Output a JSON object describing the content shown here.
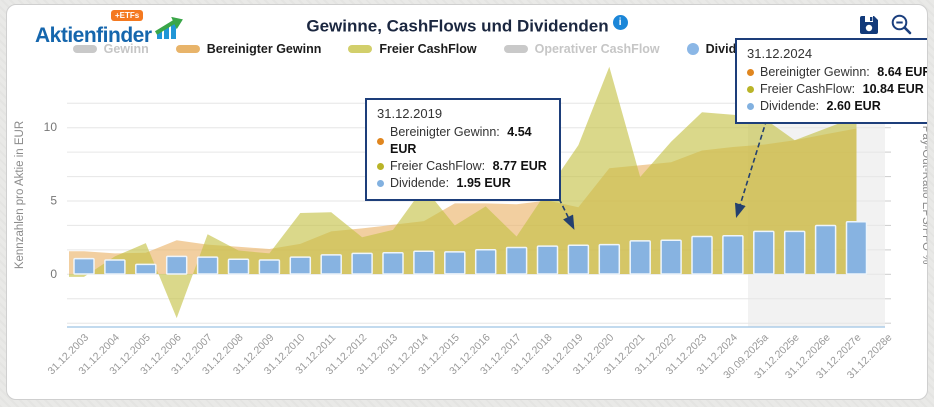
{
  "header": {
    "logo_text": "Aktienfinder",
    "logo_badge": "+ETFs",
    "title": "Gewinne, CashFlows und Dividenden"
  },
  "toolbar": {
    "icons": [
      "save-icon",
      "zoom-out-icon"
    ]
  },
  "legend": [
    {
      "label": "Gewinn",
      "color": "#c9c9c9",
      "active": false,
      "shape": "pill"
    },
    {
      "label": "Bereinigter Gewinn",
      "color": "#e8b46a",
      "active": true,
      "shape": "pill"
    },
    {
      "label": "Freier CashFlow",
      "color": "#d2cf6b",
      "active": true,
      "shape": "pill"
    },
    {
      "label": "Operativer CashFlow",
      "color": "#c9c9c9",
      "active": false,
      "shape": "pill"
    },
    {
      "label": "Dividende",
      "color": "#8bb7e6",
      "active": true,
      "shape": "circle"
    }
  ],
  "tooltips": [
    {
      "id": "tip2019",
      "date": "31.12.2019",
      "rows": [
        {
          "label": "Bereinigter Gewinn",
          "value": "4.54 EUR",
          "color": "#e0861f"
        },
        {
          "label": "Freier CashFlow",
          "value": "8.77 EUR",
          "color": "#b9b428"
        },
        {
          "label": "Dividende",
          "value": "1.95 EUR",
          "color": "#82b1e0"
        }
      ]
    },
    {
      "id": "tip2024",
      "date": "31.12.2024",
      "rows": [
        {
          "label": "Bereinigter Gewinn",
          "value": "8.64 EUR",
          "color": "#e0861f"
        },
        {
          "label": "Freier CashFlow",
          "value": "10.84 EUR",
          "color": "#b9b428"
        },
        {
          "label": "Dividende",
          "value": "2.60 EUR",
          "color": "#82b1e0"
        }
      ]
    }
  ],
  "chart_data": {
    "type": "combo",
    "title": "Gewinne, CashFlows und Dividenden",
    "ylabel_left": "Kennzahlen pro Aktie in EUR",
    "ylabel_right": "Pay-Out-Ratio EPS/FFO %",
    "y_ticks": [
      0,
      5,
      10
    ],
    "ylim": [
      -4,
      15
    ],
    "grid": true,
    "forecast_start_category": "30.09.2025a",
    "categories": [
      "31.12.2003",
      "31.12.2004",
      "31.12.2005",
      "31.12.2006",
      "31.12.2007",
      "31.12.2008",
      "31.12.2009",
      "31.12.2010",
      "31.12.2011",
      "31.12.2012",
      "31.12.2013",
      "31.12.2014",
      "31.12.2015",
      "31.12.2016",
      "31.12.2017",
      "31.12.2018",
      "31.12.2019",
      "31.12.2020",
      "31.12.2021",
      "31.12.2022",
      "31.12.2023",
      "31.12.2024",
      "30.09.2025a",
      "31.12.2025e",
      "31.12.2026e",
      "31.12.2027e",
      "31.12.2028e"
    ],
    "series": [
      {
        "name": "Bereinigter Gewinn",
        "type": "area",
        "color": "rgba(234,178,102,0.62)",
        "values": [
          1.55,
          1.4,
          1.45,
          2.3,
          2.0,
          1.85,
          1.7,
          2.05,
          2.9,
          3.1,
          3.35,
          3.6,
          4.8,
          4.8,
          4.75,
          5.0,
          4.54,
          7.2,
          7.4,
          7.6,
          8.4,
          8.64,
          8.8,
          9.1,
          9.5,
          9.9,
          null
        ]
      },
      {
        "name": "Freier CashFlow",
        "type": "area",
        "color": "rgba(196,192,66,0.62)",
        "values": [
          -0.2,
          1.2,
          2.1,
          -3.0,
          2.7,
          1.6,
          1.4,
          4.15,
          4.2,
          2.5,
          3.0,
          5.9,
          3.3,
          4.6,
          2.55,
          5.7,
          8.77,
          14.1,
          6.6,
          9.0,
          11.0,
          10.84,
          10.6,
          9.1,
          9.9,
          10.7,
          null
        ]
      },
      {
        "name": "Dividende",
        "type": "bar",
        "color": "#87b3e1",
        "values": [
          1.05,
          0.95,
          0.65,
          1.2,
          1.15,
          1.0,
          0.95,
          1.15,
          1.3,
          1.4,
          1.45,
          1.55,
          1.5,
          1.65,
          1.8,
          1.9,
          1.95,
          2.0,
          2.25,
          2.3,
          2.55,
          2.6,
          2.9,
          2.9,
          3.3,
          3.55,
          null
        ]
      }
    ]
  }
}
